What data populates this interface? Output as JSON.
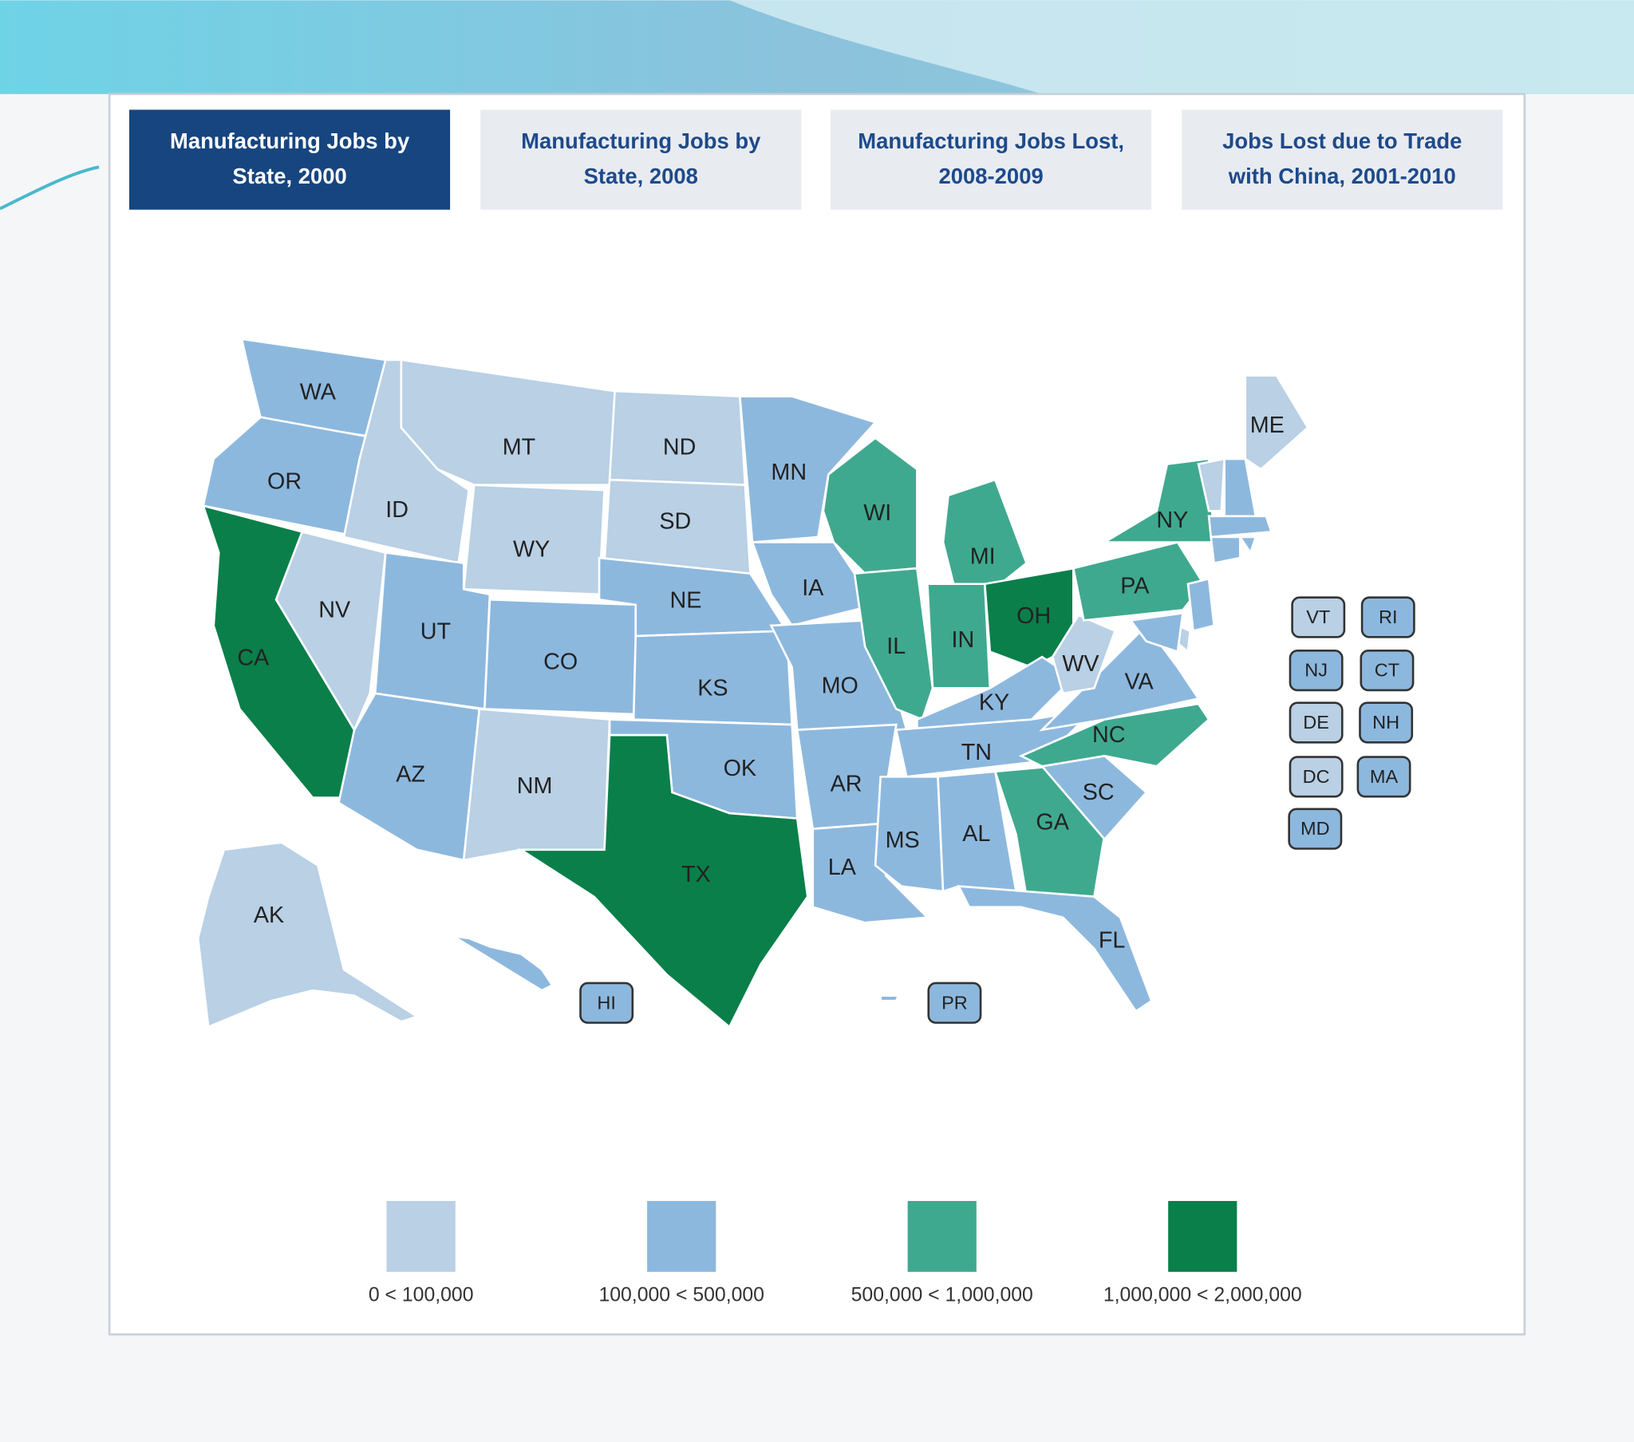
{
  "tabs": [
    {
      "title": "Manufacturing Jobs by State, 2000",
      "selected": true
    },
    {
      "title": "Manufacturing Jobs by State, 2008",
      "selected": false
    },
    {
      "title": "Manufacturing Jobs Lost, 2008-2009",
      "selected": false
    },
    {
      "title": "Jobs Lost due to Trade with China, 2001-2010",
      "selected": false
    }
  ],
  "legend": [
    {
      "label": "0 < 100,000",
      "color": "#b9d0e5"
    },
    {
      "label": "100,000 < 500,000",
      "color": "#8db8de"
    },
    {
      "label": "500,000 < 1,000,000",
      "color": "#3fa98f"
    },
    {
      "label": "1,000,000 < 2,000,000",
      "color": "#0a7f4a"
    }
  ],
  "states": [
    {
      "label": "WA",
      "color": "#8db8de"
    },
    {
      "label": "OR",
      "color": "#8db8de"
    },
    {
      "label": "CA",
      "color": "#0a7f4a"
    },
    {
      "label": "NV",
      "color": "#b9d0e5"
    },
    {
      "label": "ID",
      "color": "#b9d0e5"
    },
    {
      "label": "MT",
      "color": "#b9d0e5"
    },
    {
      "label": "WY",
      "color": "#b9d0e5"
    },
    {
      "label": "UT",
      "color": "#8db8de"
    },
    {
      "label": "CO",
      "color": "#8db8de"
    },
    {
      "label": "AZ",
      "color": "#8db8de"
    },
    {
      "label": "NM",
      "color": "#b9d0e5"
    },
    {
      "label": "ND",
      "color": "#b9d0e5"
    },
    {
      "label": "SD",
      "color": "#b9d0e5"
    },
    {
      "label": "NE",
      "color": "#8db8de"
    },
    {
      "label": "KS",
      "color": "#8db8de"
    },
    {
      "label": "OK",
      "color": "#8db8de"
    },
    {
      "label": "TX",
      "color": "#0a7f4a"
    },
    {
      "label": "MN",
      "color": "#8db8de"
    },
    {
      "label": "IA",
      "color": "#8db8de"
    },
    {
      "label": "MO",
      "color": "#8db8de"
    },
    {
      "label": "AR",
      "color": "#8db8de"
    },
    {
      "label": "LA",
      "color": "#8db8de"
    },
    {
      "label": "WI",
      "color": "#3fa98f"
    },
    {
      "label": "IL",
      "color": "#3fa98f"
    },
    {
      "label": "MI",
      "color": "#3fa98f"
    },
    {
      "label": "IN",
      "color": "#3fa98f"
    },
    {
      "label": "OH",
      "color": "#0a7f4a"
    },
    {
      "label": "KY",
      "color": "#8db8de"
    },
    {
      "label": "TN",
      "color": "#8db8de"
    },
    {
      "label": "MS",
      "color": "#8db8de"
    },
    {
      "label": "AL",
      "color": "#8db8de"
    },
    {
      "label": "GA",
      "color": "#3fa98f"
    },
    {
      "label": "FL",
      "color": "#8db8de"
    },
    {
      "label": "SC",
      "color": "#8db8de"
    },
    {
      "label": "NC",
      "color": "#3fa98f"
    },
    {
      "label": "VA",
      "color": "#8db8de"
    },
    {
      "label": "WV",
      "color": "#b9d0e5"
    },
    {
      "label": "PA",
      "color": "#3fa98f"
    },
    {
      "label": "NY",
      "color": "#3fa98f"
    },
    {
      "label": "ME",
      "color": "#b9d0e5"
    },
    {
      "label": "AK",
      "color": "#b9d0e5"
    },
    {
      "label": "VT",
      "color": "#b9d0e5"
    },
    {
      "label": "RI",
      "color": "#8db8de"
    },
    {
      "label": "NJ",
      "color": "#8db8de"
    },
    {
      "label": "CT",
      "color": "#8db8de"
    },
    {
      "label": "DE",
      "color": "#b9d0e5"
    },
    {
      "label": "NH",
      "color": "#8db8de"
    },
    {
      "label": "DC",
      "color": "#b9d0e5"
    },
    {
      "label": "MA",
      "color": "#8db8de"
    },
    {
      "label": "MD",
      "color": "#8db8de"
    },
    {
      "label": "HI",
      "color": "#8db8de"
    },
    {
      "label": "PR",
      "color": "#8db8de"
    }
  ]
}
